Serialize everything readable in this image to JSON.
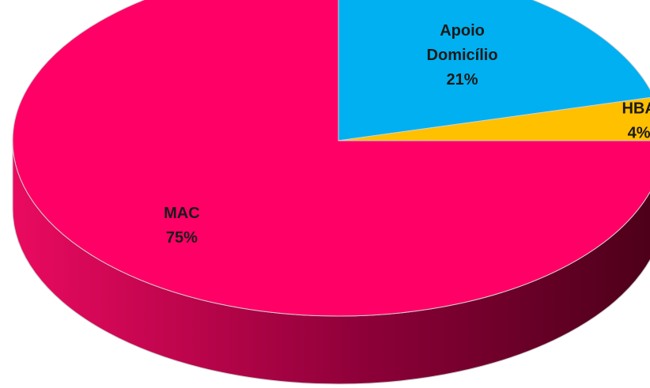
{
  "chart_data": {
    "type": "pie",
    "style": "3d",
    "slices": [
      {
        "label": "Apoio Domicílio",
        "label_lines": [
          "Apoio",
          "Domicílio"
        ],
        "value": 21,
        "value_label": "21%",
        "color": "#00b0f0",
        "side_color": "#0080b0"
      },
      {
        "label": "HBA",
        "label_lines": [
          "HBA"
        ],
        "value": 4,
        "value_label": "4%",
        "color": "#ffc000",
        "side_color": "#c08f00"
      },
      {
        "label": "MAC",
        "label_lines": [
          "MAC"
        ],
        "value": 75,
        "value_label": "75%",
        "color": "#ff0066",
        "side_color": "#b3004a"
      }
    ]
  }
}
